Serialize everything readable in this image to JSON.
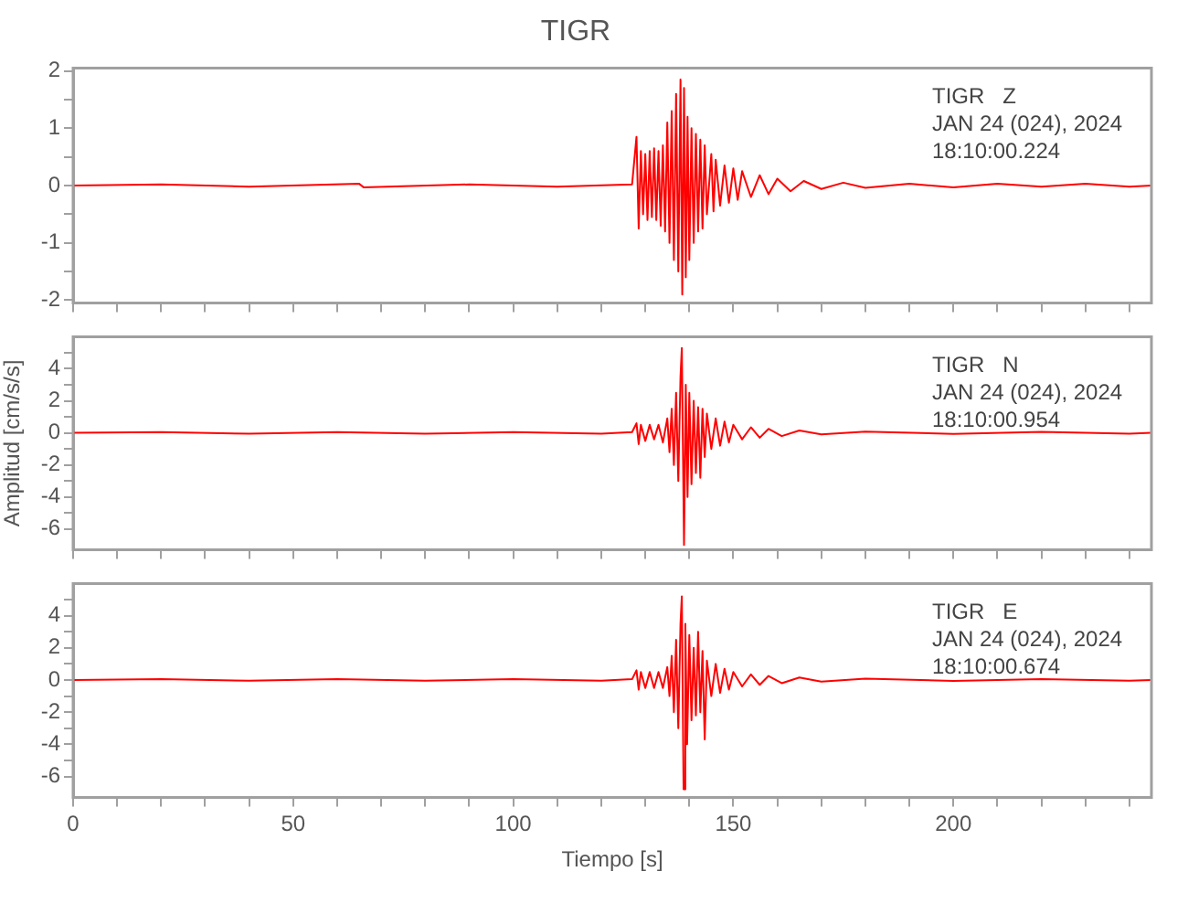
{
  "chart_data": [
    {
      "type": "line",
      "title": "TIGR",
      "annotations": [
        "TIGR   Z",
        "JAN 24 (024), 2024",
        "18:10:00.224"
      ],
      "xlim": [
        0,
        245
      ],
      "ylim": [
        -2.05,
        2.05
      ],
      "xticks": [
        0,
        {
          "value": 10,
          "label": null
        },
        {
          "value": 20,
          "label": null
        },
        {
          "value": 30,
          "label": null
        },
        {
          "value": 40,
          "label": null
        },
        50,
        {
          "value": 60,
          "label": null
        },
        {
          "value": 70,
          "label": null
        },
        {
          "value": 80,
          "label": null
        },
        {
          "value": 90,
          "label": null
        },
        100,
        {
          "value": 110,
          "label": null
        },
        {
          "value": 120,
          "label": null
        },
        {
          "value": 130,
          "label": null
        },
        {
          "value": 140,
          "label": null
        },
        150,
        {
          "value": 160,
          "label": null
        },
        {
          "value": 170,
          "label": null
        },
        {
          "value": 180,
          "label": null
        },
        {
          "value": 190,
          "label": null
        },
        200,
        {
          "value": 210,
          "label": null
        },
        {
          "value": 220,
          "label": null
        },
        {
          "value": 230,
          "label": null
        },
        {
          "value": 240,
          "label": null
        }
      ],
      "yticks": [
        -2,
        {
          "value": -1.5,
          "label": null
        },
        -1,
        {
          "value": -0.5,
          "label": null
        },
        0,
        {
          "value": 0.5,
          "label": null
        },
        1,
        {
          "value": 1.5,
          "label": null
        },
        2
      ],
      "tick_labels": "y",
      "grid": false,
      "legend": false,
      "marker": "none",
      "line_style": "solid",
      "series": [
        {
          "color": "#ff0000",
          "x": [
            0,
            20,
            40,
            65,
            66,
            90,
            110,
            127,
            128,
            128.5,
            129,
            129.5,
            130,
            130.5,
            131,
            131.5,
            132,
            132.5,
            133,
            133.5,
            134,
            134.5,
            135,
            135.5,
            136,
            136.5,
            137,
            137.5,
            138,
            138.4,
            138.8,
            139.2,
            139.6,
            140,
            140.5,
            141,
            141.5,
            142,
            142.5,
            143,
            143.5,
            144,
            145,
            145.5,
            146,
            147,
            148,
            149,
            150,
            151,
            152,
            154,
            156,
            158,
            160,
            163,
            166,
            170,
            175,
            180,
            190,
            200,
            210,
            220,
            230,
            240,
            245
          ],
          "values": [
            0,
            0.02,
            -0.02,
            0.03,
            -0.03,
            0.02,
            -0.02,
            0.02,
            0.85,
            -0.75,
            0.6,
            -0.5,
            0.55,
            -0.6,
            0.6,
            -0.55,
            0.65,
            -0.6,
            0.6,
            -0.7,
            0.7,
            -0.8,
            1.1,
            -1.0,
            1.3,
            -1.3,
            1.6,
            -1.5,
            1.85,
            -1.9,
            1.7,
            -1.6,
            1.2,
            -1.3,
            1.0,
            -1.0,
            0.9,
            -0.8,
            0.8,
            -0.75,
            0.7,
            -0.5,
            0.55,
            -0.45,
            0.45,
            -0.35,
            0.35,
            -0.3,
            0.3,
            -0.25,
            0.25,
            -0.2,
            0.18,
            -0.15,
            0.12,
            -0.1,
            0.08,
            -0.06,
            0.05,
            -0.04,
            0.03,
            -0.03,
            0.03,
            -0.02,
            0.03,
            -0.02,
            0
          ]
        }
      ]
    },
    {
      "type": "line",
      "ylabel": "Amplitud [cm/s/s]",
      "annotations": [
        "TIGR   N",
        "JAN 24 (024), 2024",
        "18:10:00.954"
      ],
      "xlim": [
        0,
        245
      ],
      "ylim": [
        -7.3,
        6
      ],
      "xticks": [
        0,
        {
          "value": 10,
          "label": null
        },
        {
          "value": 20,
          "label": null
        },
        {
          "value": 30,
          "label": null
        },
        {
          "value": 40,
          "label": null
        },
        50,
        {
          "value": 60,
          "label": null
        },
        {
          "value": 70,
          "label": null
        },
        {
          "value": 80,
          "label": null
        },
        {
          "value": 90,
          "label": null
        },
        100,
        {
          "value": 110,
          "label": null
        },
        {
          "value": 120,
          "label": null
        },
        {
          "value": 130,
          "label": null
        },
        {
          "value": 140,
          "label": null
        },
        150,
        {
          "value": 160,
          "label": null
        },
        {
          "value": 170,
          "label": null
        },
        {
          "value": 180,
          "label": null
        },
        {
          "value": 190,
          "label": null
        },
        200,
        {
          "value": 210,
          "label": null
        },
        {
          "value": 220,
          "label": null
        },
        {
          "value": 230,
          "label": null
        },
        {
          "value": 240,
          "label": null
        }
      ],
      "yticks": [
        -6,
        {
          "value": -5,
          "label": null
        },
        -4,
        {
          "value": -3,
          "label": null
        },
        -2,
        {
          "value": -1,
          "label": null
        },
        0,
        {
          "value": 1,
          "label": null
        },
        2,
        {
          "value": 3,
          "label": null
        },
        4,
        {
          "value": 5,
          "label": null
        }
      ],
      "tick_labels": "y",
      "grid": false,
      "legend": false,
      "marker": "none",
      "line_style": "solid",
      "series": [
        {
          "color": "#ff0000",
          "x": [
            0,
            20,
            40,
            60,
            80,
            100,
            120,
            127,
            128,
            128.5,
            129,
            130,
            131,
            132,
            133,
            134,
            135,
            135.5,
            136,
            136.5,
            137,
            137.5,
            138,
            138.3,
            138.8,
            139.2,
            139.6,
            140,
            140.5,
            141,
            141.5,
            142,
            142.5,
            143,
            143.5,
            144,
            145,
            146,
            147,
            148,
            149,
            150,
            152,
            154,
            156,
            158,
            161,
            165,
            170,
            180,
            200,
            220,
            240,
            245
          ],
          "values": [
            0,
            0.05,
            -0.05,
            0.05,
            -0.05,
            0.05,
            -0.05,
            0.05,
            0.6,
            -0.7,
            0.5,
            -0.5,
            0.5,
            -0.4,
            0.5,
            -0.6,
            0.9,
            -1.2,
            1.5,
            -2.0,
            2.5,
            -3.0,
            3.5,
            5.3,
            -7.0,
            3.0,
            -4.0,
            2.5,
            -3.2,
            2.0,
            -2.5,
            1.6,
            -2.8,
            1.5,
            -1.5,
            1.2,
            -1.0,
            0.9,
            -0.8,
            0.7,
            -0.6,
            0.5,
            -0.4,
            0.35,
            -0.3,
            0.25,
            -0.2,
            0.15,
            -0.1,
            0.08,
            -0.06,
            0.06,
            -0.05,
            0
          ]
        }
      ]
    },
    {
      "type": "line",
      "xlabel": "Tiempo [s]",
      "annotations": [
        "TIGR   E",
        "JAN 24 (024), 2024",
        "18:10:00.674"
      ],
      "xlim": [
        0,
        245
      ],
      "ylim": [
        -7.3,
        6
      ],
      "xticks": [
        0,
        {
          "value": 10,
          "label": null
        },
        {
          "value": 20,
          "label": null
        },
        {
          "value": 30,
          "label": null
        },
        {
          "value": 40,
          "label": null
        },
        50,
        {
          "value": 60,
          "label": null
        },
        {
          "value": 70,
          "label": null
        },
        {
          "value": 80,
          "label": null
        },
        {
          "value": 90,
          "label": null
        },
        100,
        {
          "value": 110,
          "label": null
        },
        {
          "value": 120,
          "label": null
        },
        {
          "value": 130,
          "label": null
        },
        {
          "value": 140,
          "label": null
        },
        150,
        {
          "value": 160,
          "label": null
        },
        {
          "value": 170,
          "label": null
        },
        {
          "value": 180,
          "label": null
        },
        {
          "value": 190,
          "label": null
        },
        200,
        {
          "value": 210,
          "label": null
        },
        {
          "value": 220,
          "label": null
        },
        {
          "value": 230,
          "label": null
        },
        {
          "value": 240,
          "label": null
        }
      ],
      "yticks": [
        -6,
        {
          "value": -5,
          "label": null
        },
        -4,
        {
          "value": -3,
          "label": null
        },
        -2,
        {
          "value": -1,
          "label": null
        },
        0,
        {
          "value": 1,
          "label": null
        },
        2,
        {
          "value": 3,
          "label": null
        },
        4,
        {
          "value": 5,
          "label": null
        }
      ],
      "grid": false,
      "legend": false,
      "marker": "none",
      "line_style": "solid",
      "series": [
        {
          "color": "#ff0000",
          "x": [
            0,
            20,
            40,
            60,
            80,
            100,
            120,
            127,
            128,
            128.5,
            129,
            130,
            131,
            132,
            133,
            134,
            135,
            135.5,
            136,
            136.5,
            137,
            137.5,
            138,
            138.3,
            138.7,
            139.1,
            139.5,
            140,
            140.5,
            141,
            141.5,
            142,
            142.5,
            143,
            143.5,
            144,
            145,
            146,
            147,
            148,
            149,
            150,
            152,
            154,
            156,
            158,
            161,
            165,
            170,
            180,
            200,
            220,
            240,
            245
          ],
          "values": [
            0,
            0.05,
            -0.05,
            0.05,
            -0.05,
            0.05,
            -0.05,
            0.05,
            0.6,
            -0.6,
            0.5,
            -0.5,
            0.5,
            -0.5,
            0.5,
            -0.5,
            0.8,
            -1.0,
            1.5,
            -2.0,
            2.5,
            -3.0,
            3.5,
            5.2,
            -6.8,
            3.5,
            -4.0,
            2.8,
            -2.5,
            2.0,
            -2.2,
            3.0,
            -2.0,
            1.8,
            -3.7,
            1.2,
            -1.0,
            1.0,
            -0.8,
            0.7,
            -0.6,
            0.5,
            -0.4,
            0.35,
            -0.3,
            0.25,
            -0.2,
            0.15,
            -0.1,
            0.08,
            -0.06,
            0.06,
            -0.05,
            0
          ]
        }
      ]
    }
  ]
}
